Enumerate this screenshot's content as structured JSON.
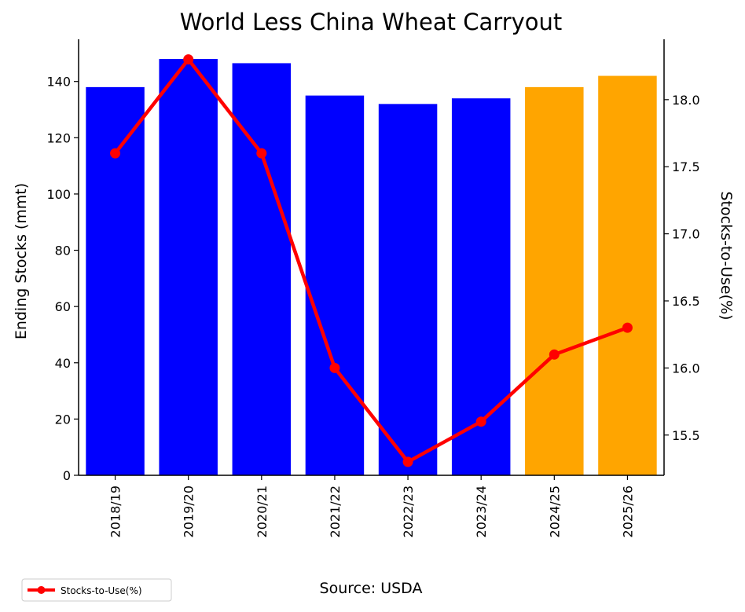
{
  "chart_data": {
    "type": "bar",
    "title": "World Less China Wheat Carryout",
    "xlabel": "Source: USDA",
    "ylabel": "Ending Stocks (mmt)",
    "y2label": "Stocks-to-Use(%)",
    "categories": [
      "2018/19",
      "2019/20",
      "2020/21",
      "2021/22",
      "2022/23",
      "2023/24",
      "2024/25",
      "2025/26"
    ],
    "ylim": [
      0,
      155
    ],
    "y2lim": [
      15.2,
      18.45
    ],
    "yticks": [
      0,
      20,
      40,
      60,
      80,
      100,
      120,
      140
    ],
    "y2ticks": [
      "15.5",
      "16.0",
      "16.5",
      "17.0",
      "17.5",
      "18.0"
    ],
    "grid": false,
    "legend_position": "bottom-left",
    "series": [
      {
        "type": "bar",
        "axis": "left",
        "values": [
          138,
          148,
          146.5,
          135,
          132,
          134,
          138,
          142
        ],
        "colors": [
          "#0000ff",
          "#0000ff",
          "#0000ff",
          "#0000ff",
          "#0000ff",
          "#0000ff",
          "#ffa500",
          "#ffa500"
        ]
      },
      {
        "type": "line",
        "axis": "right",
        "name": "Stocks-to-Use(%)",
        "values": [
          17.6,
          18.3,
          17.6,
          16.0,
          15.3,
          15.6,
          16.1,
          16.3
        ],
        "color": "#ff0000"
      }
    ]
  }
}
